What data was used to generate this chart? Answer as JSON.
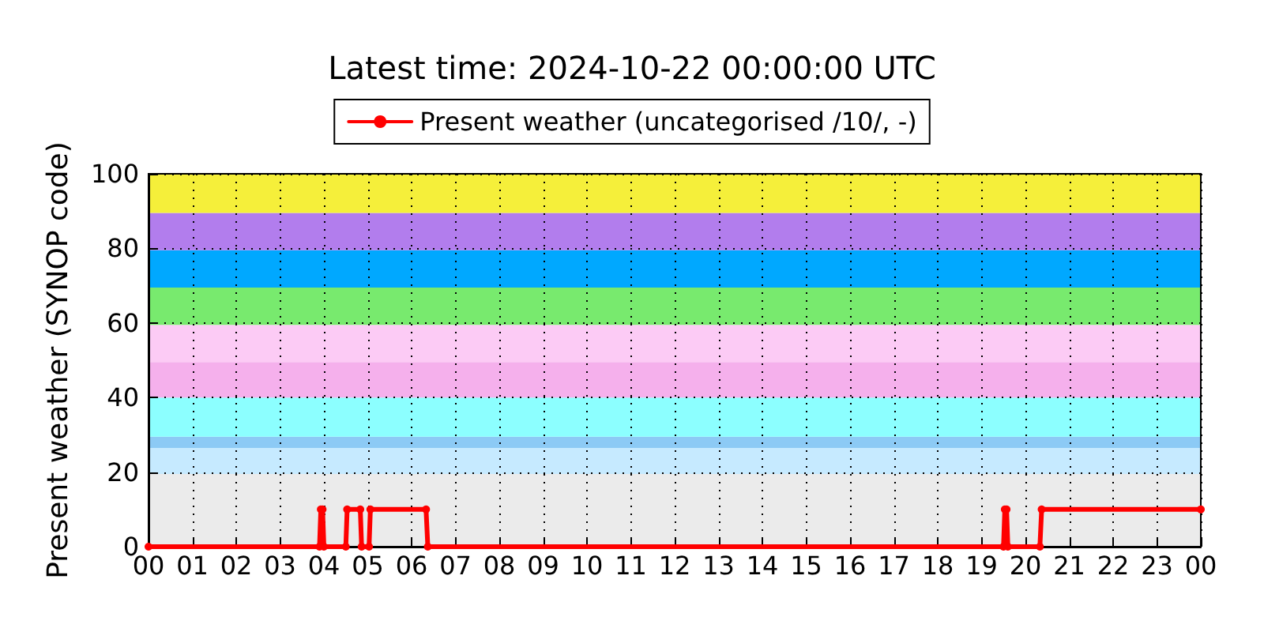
{
  "chart_data": {
    "type": "line",
    "title": "Latest time: 2024-10-22 00:00:00 UTC",
    "ylabel": "Present weather (SYNOP code)",
    "xlim": [
      0,
      24
    ],
    "xticks": [
      {
        "value": 0,
        "label": "00"
      },
      {
        "value": 1,
        "label": "01"
      },
      {
        "value": 2,
        "label": "02"
      },
      {
        "value": 3,
        "label": "03"
      },
      {
        "value": 4,
        "label": "04"
      },
      {
        "value": 5,
        "label": "05"
      },
      {
        "value": 6,
        "label": "06"
      },
      {
        "value": 7,
        "label": "07"
      },
      {
        "value": 8,
        "label": "08"
      },
      {
        "value": 9,
        "label": "09"
      },
      {
        "value": 10,
        "label": "10"
      },
      {
        "value": 11,
        "label": "11"
      },
      {
        "value": 12,
        "label": "12"
      },
      {
        "value": 13,
        "label": "13"
      },
      {
        "value": 14,
        "label": "14"
      },
      {
        "value": 15,
        "label": "15"
      },
      {
        "value": 16,
        "label": "16"
      },
      {
        "value": 17,
        "label": "17"
      },
      {
        "value": 18,
        "label": "18"
      },
      {
        "value": 19,
        "label": "19"
      },
      {
        "value": 20,
        "label": "20"
      },
      {
        "value": 21,
        "label": "21"
      },
      {
        "value": 22,
        "label": "22"
      },
      {
        "value": 23,
        "label": "23"
      },
      {
        "value": 24,
        "label": "00"
      }
    ],
    "ylim": [
      0,
      100
    ],
    "yticks": [
      0,
      20,
      40,
      60,
      80,
      100
    ],
    "grid": true,
    "legend": "top",
    "marker": "circle",
    "line_style": "solid",
    "series": [
      {
        "name": "Present weather (uncategorised /10/, -)",
        "color": "#ff0000",
        "x": [
          0,
          3.9,
          3.93,
          3.97,
          4.0,
          4.5,
          4.53,
          4.83,
          4.86,
          5.03,
          5.06,
          6.33,
          6.37,
          19.5,
          19.53,
          19.57,
          19.6,
          20.33,
          20.37,
          24
        ],
        "values": [
          0,
          0,
          10,
          10,
          0,
          0,
          10,
          10,
          0,
          0,
          10,
          10,
          0,
          0,
          10,
          10,
          0,
          0,
          10,
          10
        ]
      }
    ],
    "bands": [
      {
        "axis": "y",
        "from": 0,
        "to": 19.5,
        "color": "#ebebeb"
      },
      {
        "axis": "y",
        "from": 19.5,
        "to": 26.5,
        "color": "#c6eaff"
      },
      {
        "axis": "y",
        "from": 26.5,
        "to": 29.5,
        "color": "#8ccaf5"
      },
      {
        "axis": "y",
        "from": 29.5,
        "to": 40,
        "color": "#8cffff"
      },
      {
        "axis": "y",
        "from": 40,
        "to": 49.5,
        "color": "#f5b0ec"
      },
      {
        "axis": "y",
        "from": 49.5,
        "to": 59.5,
        "color": "#fccbf5"
      },
      {
        "axis": "y",
        "from": 59.5,
        "to": 69.5,
        "color": "#78ea6e"
      },
      {
        "axis": "y",
        "from": 69.5,
        "to": 79.5,
        "color": "#00a8ff"
      },
      {
        "axis": "y",
        "from": 79.5,
        "to": 89.5,
        "color": "#b27ded"
      },
      {
        "axis": "y",
        "from": 89.5,
        "to": 100,
        "color": "#f5ef3a"
      }
    ]
  }
}
